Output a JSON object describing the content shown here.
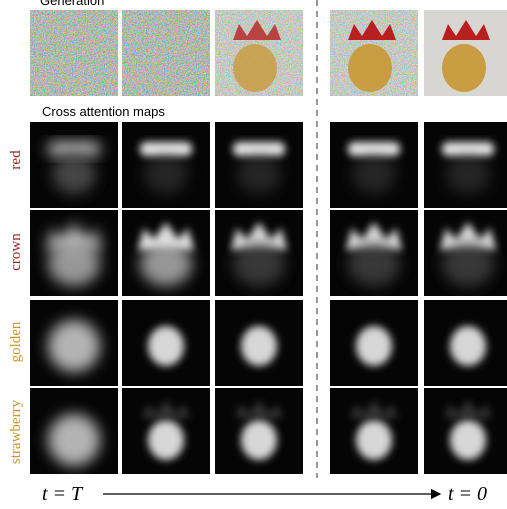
{
  "header": {
    "generation": "Generation",
    "cross_attention": "Cross attention maps"
  },
  "rows": [
    {
      "label": "red"
    },
    {
      "label": "crown"
    },
    {
      "label": "golden"
    },
    {
      "label": "strawberry"
    }
  ],
  "timeline": {
    "start": "t = T",
    "end": "t = 0"
  }
}
